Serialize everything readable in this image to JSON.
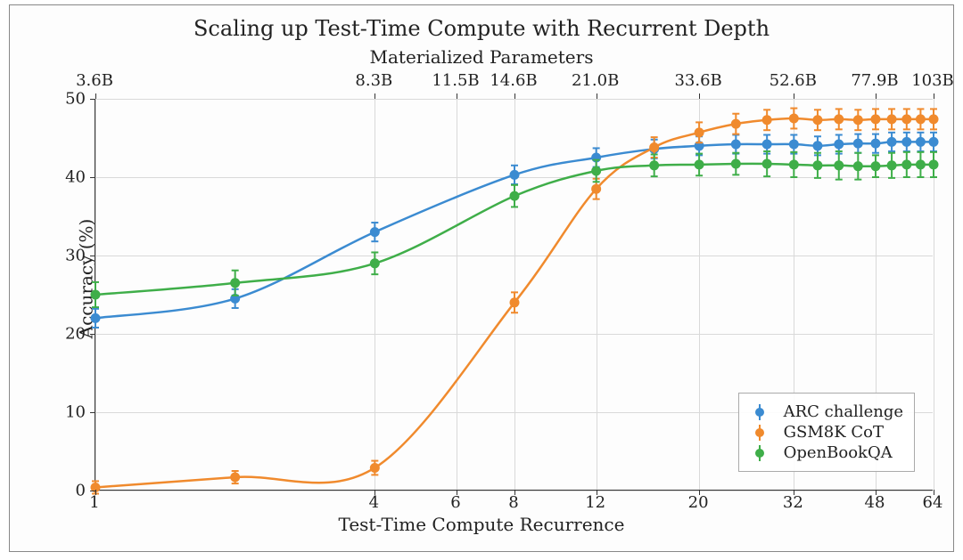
{
  "chart": {
    "type": "line-scatter",
    "title": "Scaling up Test-Time Compute with Recurrent Depth",
    "title_fontsize": 24,
    "background_color": "#ffffff",
    "grid_color": "#d9d9d9",
    "axis_color": "#333333",
    "font_family": "serif",
    "x_axis": {
      "label": "Test-Time Compute Recurrence",
      "label_fontsize": 20,
      "scale": "log",
      "lim": [
        1,
        64
      ],
      "ticks": [
        1,
        4,
        6,
        8,
        12,
        20,
        32,
        48,
        64
      ],
      "tick_labels": [
        "1",
        "4",
        "6",
        "8",
        "12",
        "20",
        "32",
        "48",
        "64"
      ],
      "tick_fontsize": 18
    },
    "top_axis": {
      "label": "Materialized Parameters",
      "label_fontsize": 20,
      "ticks_at_x": [
        1,
        4,
        6,
        8,
        12,
        20,
        32,
        48,
        64
      ],
      "tick_labels": [
        "3.6B",
        "8.3B",
        "11.5B",
        "14.6B",
        "21.0B",
        "33.6B",
        "52.6B",
        "77.9B",
        "103B"
      ],
      "tick_fontsize": 18
    },
    "y_axis": {
      "label": "Accuracy (%)",
      "label_fontsize": 20,
      "lim": [
        0,
        50
      ],
      "tick_step": 10,
      "ticks": [
        0,
        10,
        20,
        30,
        40,
        50
      ],
      "tick_fontsize": 18
    },
    "marker_radius": 5.5,
    "line_width": 2.5,
    "errorbar_width": 2,
    "series": [
      {
        "name": "ARC challenge",
        "color": "#3b8bd1",
        "x": [
          1,
          2,
          4,
          8,
          12,
          16,
          20,
          24,
          28,
          32,
          36,
          40,
          44,
          48,
          52,
          56,
          60,
          64
        ],
        "y": [
          22.0,
          24.5,
          33.0,
          40.3,
          42.5,
          43.6,
          44.0,
          44.2,
          44.2,
          44.2,
          44.0,
          44.2,
          44.3,
          44.3,
          44.5,
          44.5,
          44.5,
          44.5
        ],
        "err": [
          1.2,
          1.2,
          1.2,
          1.2,
          1.2,
          1.2,
          1.2,
          1.2,
          1.2,
          1.2,
          1.2,
          1.2,
          1.2,
          1.2,
          1.2,
          1.2,
          1.2,
          1.2
        ]
      },
      {
        "name": "GSM8K CoT",
        "color": "#f08a2d",
        "x": [
          1,
          2,
          4,
          8,
          12,
          16,
          20,
          24,
          28,
          32,
          36,
          40,
          44,
          48,
          52,
          56,
          60,
          64
        ],
        "y": [
          0.4,
          1.7,
          2.9,
          24.0,
          38.5,
          43.8,
          45.7,
          46.8,
          47.3,
          47.5,
          47.3,
          47.4,
          47.3,
          47.4,
          47.4,
          47.4,
          47.4,
          47.4
        ],
        "err": [
          0.8,
          0.8,
          0.9,
          1.3,
          1.3,
          1.3,
          1.3,
          1.3,
          1.3,
          1.3,
          1.3,
          1.3,
          1.3,
          1.3,
          1.3,
          1.3,
          1.3,
          1.3
        ]
      },
      {
        "name": "OpenBookQA",
        "color": "#3fae49",
        "x": [
          1,
          2,
          4,
          8,
          12,
          16,
          20,
          24,
          28,
          32,
          36,
          40,
          44,
          48,
          52,
          56,
          60,
          64
        ],
        "y": [
          25.0,
          26.5,
          29.0,
          37.6,
          40.8,
          41.5,
          41.6,
          41.7,
          41.7,
          41.6,
          41.5,
          41.5,
          41.4,
          41.4,
          41.5,
          41.6,
          41.6,
          41.6
        ],
        "err": [
          1.6,
          1.6,
          1.4,
          1.4,
          1.4,
          1.4,
          1.4,
          1.4,
          1.6,
          1.6,
          1.6,
          1.8,
          1.7,
          1.4,
          1.6,
          1.6,
          1.6,
          1.6
        ]
      }
    ],
    "legend": {
      "position": "lower right",
      "border_color": "#aaaaaa",
      "background_color": "rgba(255,255,255,0.9)",
      "fontsize": 18
    }
  }
}
